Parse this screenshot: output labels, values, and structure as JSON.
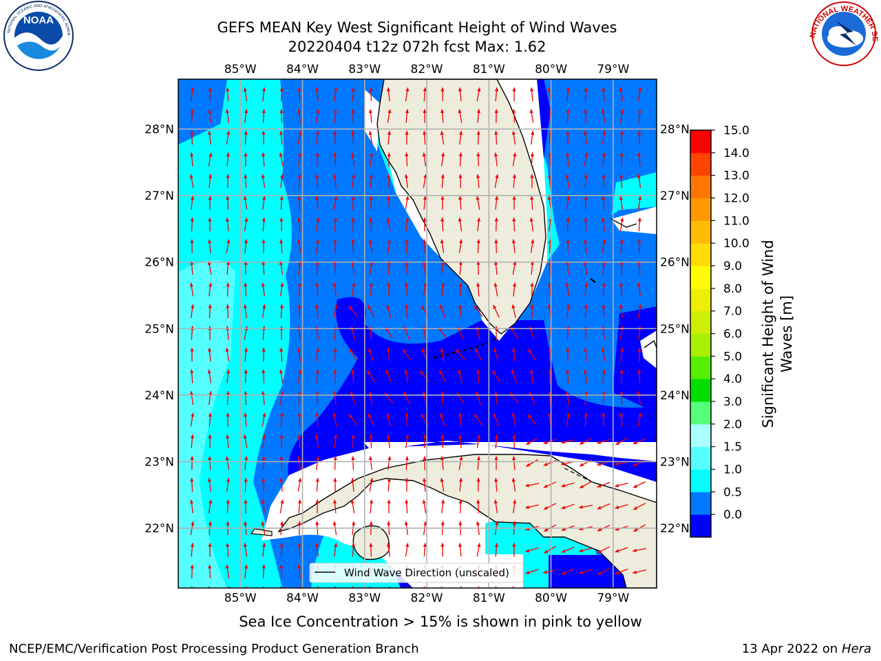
{
  "title": {
    "line1": "GEFS MEAN Key West Significant Height of Wind Waves",
    "line2": "20220404 t12z 072h fcst   Max: 1.62"
  },
  "logos": {
    "left": {
      "text": "NOAA",
      "ring": "NATIONAL OCEANIC AND ATMOSPHERIC ADMINISTRATION · U.S. DEPARTMENT OF COMMERCE"
    },
    "right": {
      "ring": "NATIONAL WEATHER SERVICE"
    }
  },
  "map": {
    "lon_labels": [
      "85°W",
      "84°W",
      "83°W",
      "82°W",
      "81°W",
      "80°W",
      "79°W"
    ],
    "lat_labels": [
      "28°N",
      "27°N",
      "26°N",
      "25°N",
      "24°N",
      "23°N",
      "22°N"
    ],
    "lon_range": [
      -86.0,
      -78.3
    ],
    "lat_range": [
      21.1,
      28.75
    ],
    "legend_label": "Wind Wave Direction (unscaled)"
  },
  "colorbar": {
    "label_line1": "Significant Height of Wind",
    "label_line2": "Waves [m]",
    "ticks": [
      "15.0",
      "14.0",
      "13.0",
      "12.0",
      "11.0",
      "10.0",
      "9.0",
      "8.0",
      "7.0",
      "6.0",
      "5.0",
      "4.0",
      "3.0",
      "2.0",
      "1.5",
      "1.0",
      "0.5",
      "0.0"
    ],
    "colors_bottom_to_top": [
      "#0000ff",
      "#0078ff",
      "#00ffff",
      "#55ffff",
      "#aaffff",
      "#55ff77",
      "#00dd00",
      "#55ee00",
      "#aaee00",
      "#ccee00",
      "#eeee00",
      "#ffff00",
      "#ffdd00",
      "#ffbb00",
      "#ff9900",
      "#ff7700",
      "#ff4400",
      "#ff0000"
    ]
  },
  "note": "Sea Ice Concentration > 15% is shown in pink to yellow",
  "footer": {
    "left": "NCEP/EMC/Verification Post Processing Product Generation Branch",
    "date": "13 Apr 2022 on",
    "machine": "Hera"
  },
  "colors": {
    "blue_0_05": "#0000ff",
    "blue_05_1": "#0078ff",
    "cyan_1_15": "#00ffff",
    "cyan_15_2": "#55ffff",
    "land": "#eeecdc",
    "arrow": "#ee0000",
    "grid": "#b0b0b0"
  }
}
